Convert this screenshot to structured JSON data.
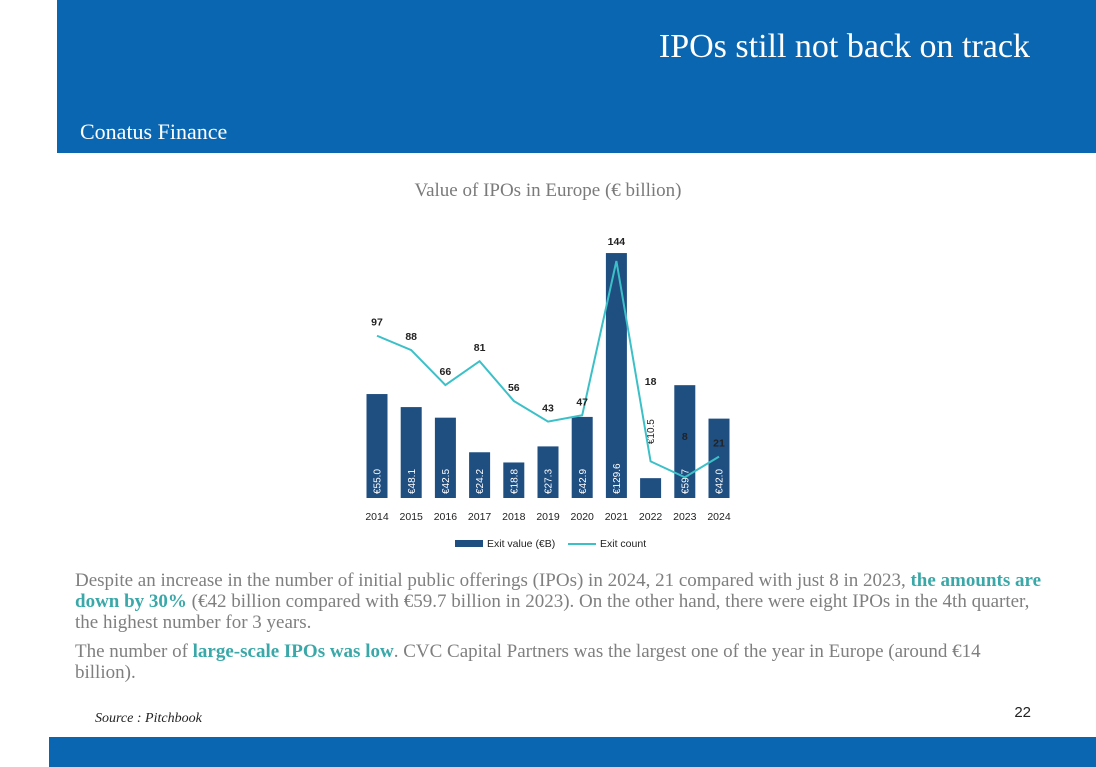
{
  "slide": {
    "title": "IPOs still not back on track",
    "brand": "Conatus Finance",
    "page_number": "22",
    "source": "Source : Pitchbook"
  },
  "body": {
    "p1_a": "Despite an increase in the number of initial public offerings (IPOs) in 2024, 21 compared with just 8 in 2023, ",
    "p1_highlight": "the amounts are down by 30%",
    "p1_b": " (€42 billion compared with €59.7 billion in 2023). On the other hand, there were eight IPOs in the 4th quarter, the highest number for 3 years.",
    "p2_a": "The number of ",
    "p2_highlight": "large-scale IPOs was low",
    "p2_b": ". CVC Capital Partners was the largest one of the year in Europe (around €14 billion)."
  },
  "colors": {
    "header": "#0a66b0",
    "bar": "#1f4e80",
    "line": "#3cc0c8",
    "highlight": "#3aa8a8"
  },
  "chart_data": {
    "type": "bar",
    "title": "Value of IPOs in Europe (€ billion)",
    "categories": [
      "2014",
      "2015",
      "2016",
      "2017",
      "2018",
      "2019",
      "2020",
      "2021",
      "2022",
      "2023",
      "2024"
    ],
    "series": [
      {
        "name": "Exit value (€B)",
        "type": "bar",
        "values": [
          55.0,
          48.1,
          42.5,
          24.2,
          18.8,
          27.3,
          42.9,
          129.6,
          10.5,
          59.7,
          42.0
        ],
        "labels": [
          "€55.0",
          "€48.1",
          "€42.5",
          "€24.2",
          "€18.8",
          "€27.3",
          "€42.9",
          "€129.6",
          "€10.5",
          "€59.7",
          "€42.0"
        ]
      },
      {
        "name": "Exit count",
        "type": "line",
        "values": [
          97,
          88,
          66,
          81,
          56,
          43,
          47,
          144,
          18,
          8,
          21
        ]
      }
    ],
    "legend": "bottom",
    "grid": false
  }
}
